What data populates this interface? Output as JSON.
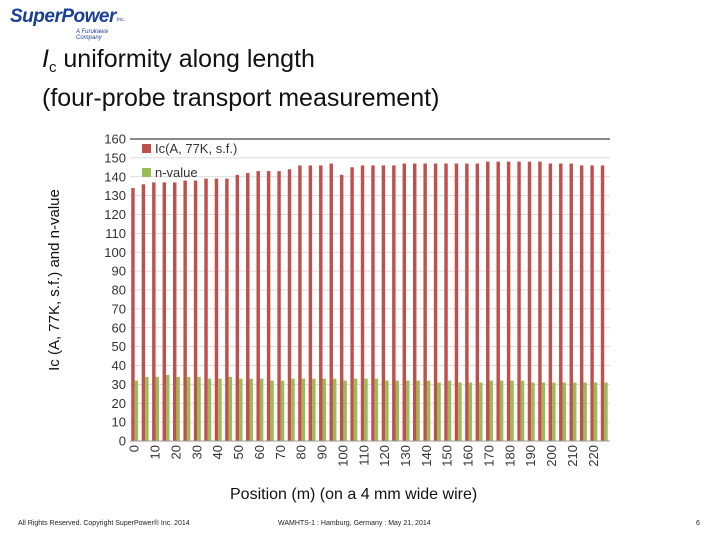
{
  "logo": {
    "name": "SuperPower",
    "inc": "Inc.",
    "subtitle": "A Furukawa Company"
  },
  "title": {
    "italic": "I",
    "subscript": "c",
    "line1_rest": " uniformity along length",
    "line2": "(four-probe transport measurement)"
  },
  "footer": {
    "copyright": "All Rights Reserved.  Copyright SuperPower® Inc. 2014",
    "event": "WAMHTS-1 : Hamburg, Germany : May 21, 2014",
    "page": "6"
  },
  "chart_data": {
    "type": "bar",
    "xlabel": "Position (m) (on a 4 mm wide wire)",
    "ylabel": "Ic (A, 77K, s.f.) and n-value",
    "ylim": [
      0,
      160
    ],
    "yticks": [
      0,
      10,
      20,
      30,
      40,
      50,
      60,
      70,
      80,
      90,
      100,
      110,
      120,
      130,
      140,
      150,
      160
    ],
    "xticks": [
      "0",
      "10",
      "20",
      "30",
      "40",
      "50",
      "60",
      "70",
      "80",
      "90",
      "100",
      "110",
      "120",
      "130",
      "140",
      "150",
      "160",
      "170",
      "180",
      "190",
      "200",
      "210",
      "220"
    ],
    "grid": true,
    "legend_position": "top-left",
    "categories": [
      0,
      5,
      10,
      15,
      20,
      25,
      30,
      35,
      40,
      45,
      50,
      55,
      60,
      65,
      70,
      75,
      80,
      85,
      90,
      95,
      100,
      105,
      110,
      115,
      120,
      125,
      130,
      135,
      140,
      145,
      150,
      155,
      160,
      165,
      170,
      175,
      180,
      185,
      190,
      195,
      200,
      205,
      210,
      215,
      220,
      225
    ],
    "series": [
      {
        "name": "Ic(A, 77K, s.f.)",
        "color": "#c0504d",
        "values": [
          134,
          136,
          137,
          137,
          137,
          138,
          138,
          139,
          139,
          139,
          141,
          142,
          143,
          143,
          143,
          144,
          146,
          146,
          146,
          147,
          141,
          145,
          146,
          146,
          146,
          146,
          147,
          147,
          147,
          147,
          147,
          147,
          147,
          147,
          148,
          148,
          148,
          148,
          148,
          148,
          147,
          147,
          147,
          146,
          146,
          146
        ]
      },
      {
        "name": "n-value",
        "color": "#9bbb59",
        "values": [
          32,
          34,
          34,
          35,
          34,
          34,
          34,
          33,
          33,
          34,
          33,
          33,
          33,
          32,
          32,
          33,
          33,
          33,
          33,
          33,
          32,
          33,
          33,
          33,
          32,
          32,
          32,
          32,
          32,
          31,
          32,
          31,
          31,
          31,
          32,
          32,
          32,
          32,
          31,
          31,
          31,
          31,
          31,
          31,
          31,
          31
        ]
      }
    ]
  }
}
